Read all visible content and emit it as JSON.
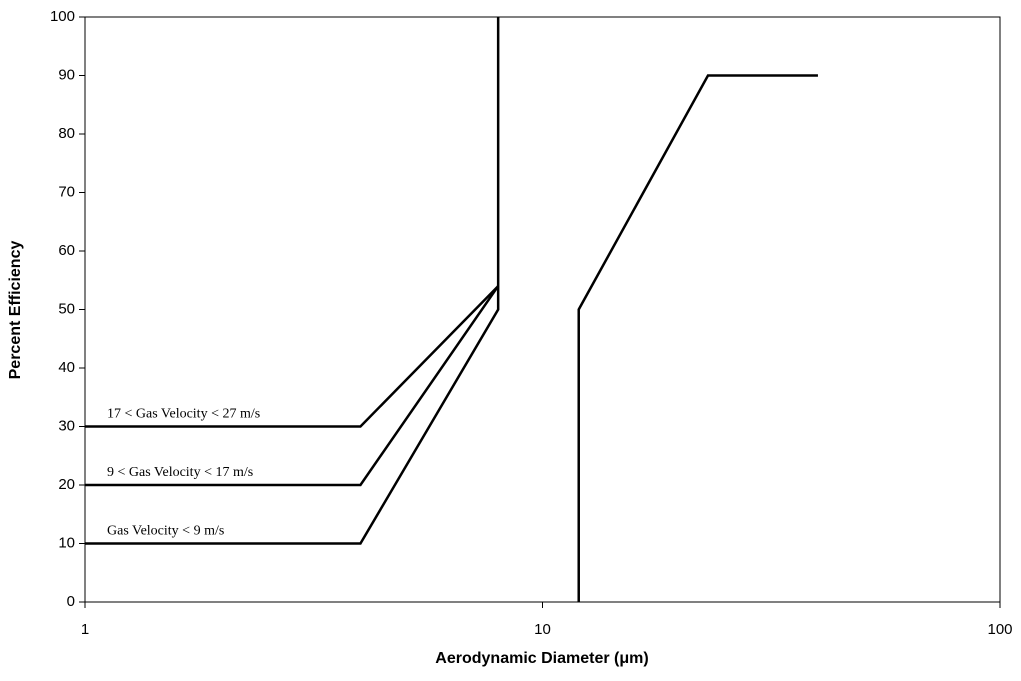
{
  "chart_data": {
    "type": "line",
    "xlabel": "Aerodynamic Diameter (μm)",
    "ylabel": "Percent Efficiency",
    "xscale": "log",
    "xlim": [
      1,
      100
    ],
    "xticks": [
      1,
      10,
      100
    ],
    "ylim": [
      0,
      100
    ],
    "yticks": [
      0,
      10,
      20,
      30,
      40,
      50,
      60,
      70,
      80,
      90,
      100
    ],
    "color": "#000000",
    "series": [
      {
        "name": "Gas Velocity < 9 m/s",
        "x": [
          1,
          4,
          8,
          8
        ],
        "values": [
          10,
          10,
          50,
          100
        ]
      },
      {
        "name": "9 < Gas Velocity < 17 m/s",
        "x": [
          1,
          4,
          8
        ],
        "values": [
          20,
          20,
          54
        ]
      },
      {
        "name": "17 < Gas Velocity < 27 m/s",
        "x": [
          1,
          4,
          8
        ],
        "values": [
          30,
          30,
          54
        ]
      },
      {
        "x": [
          12,
          12,
          23,
          40
        ],
        "values": [
          0,
          50,
          90,
          90
        ]
      }
    ]
  }
}
